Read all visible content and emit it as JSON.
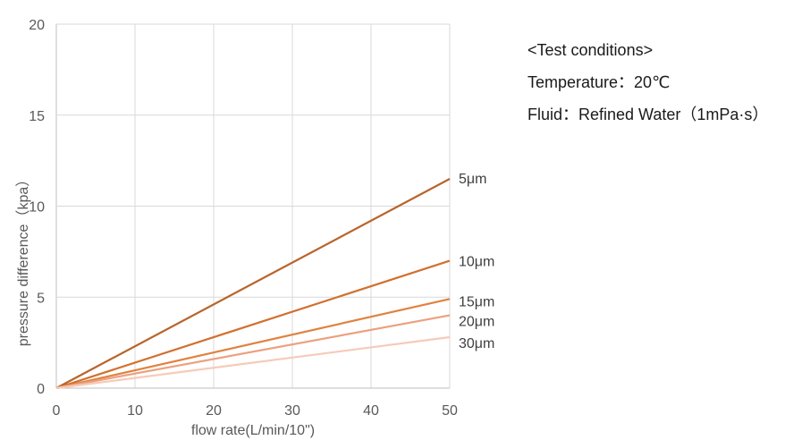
{
  "chart_data": {
    "type": "line",
    "title": "",
    "xlabel": "flow rate(L/min/10\")",
    "ylabel": "pressure difference（kpa）",
    "xlim": [
      0,
      50
    ],
    "ylim": [
      0,
      20
    ],
    "xticks": [
      "0",
      "10",
      "20",
      "30",
      "40",
      "50"
    ],
    "yticks": [
      "0",
      "5",
      "10",
      "15",
      "20"
    ],
    "grid": true,
    "series": [
      {
        "name": "5μm",
        "x": [
          0,
          50
        ],
        "y": [
          0,
          11.5
        ],
        "color": "#b8642b"
      },
      {
        "name": "10μm",
        "x": [
          0,
          50
        ],
        "y": [
          0,
          7.0
        ],
        "color": "#d1702e"
      },
      {
        "name": "15μm",
        "x": [
          0,
          50
        ],
        "y": [
          0,
          4.9
        ],
        "color": "#e0823f"
      },
      {
        "name": "20μm",
        "x": [
          0,
          50
        ],
        "y": [
          0,
          4.0
        ],
        "color": "#eba17f"
      },
      {
        "name": "30μm",
        "x": [
          0,
          50
        ],
        "y": [
          0,
          2.8
        ],
        "color": "#f5cbb8"
      }
    ]
  },
  "conditions": {
    "heading": "<Test conditions>",
    "temperature": "Temperature：20℃",
    "fluid": "Fluid：Refined Water（1mPa·s）"
  },
  "colors": {
    "grid": "#d9d9d9",
    "axis": "#bfbfbf"
  }
}
